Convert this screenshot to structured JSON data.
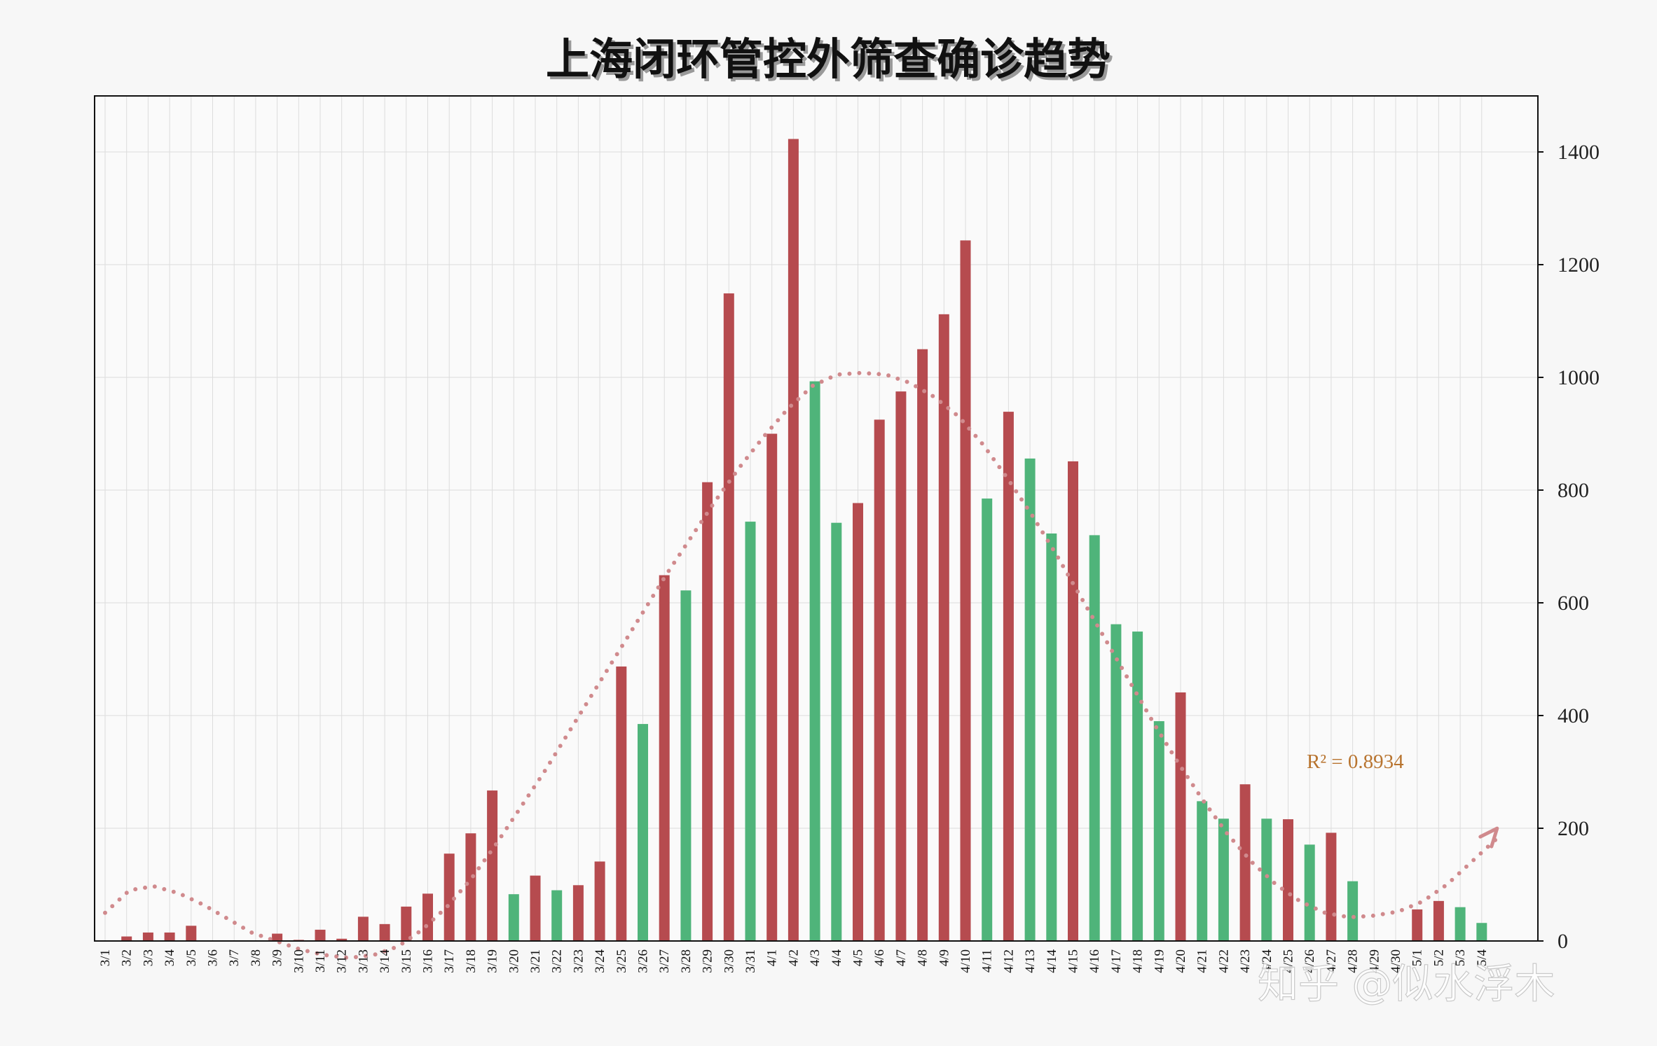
{
  "colors": {
    "up": "#b64b4f",
    "down": "#4fb47a",
    "trend": "#d08a8d",
    "r2_text": "#b8742f"
  },
  "chart_data": {
    "type": "bar",
    "title": "上海闭环管控外筛查确诊趋势",
    "xlabel": "",
    "ylabel": "",
    "y_axis_side": "right",
    "ylim": [
      0,
      1400
    ],
    "yticks": [
      0,
      200,
      400,
      600,
      800,
      1000,
      1200,
      1400
    ],
    "grid": true,
    "legend": "none",
    "categories": [
      "3/1",
      "3/2",
      "3/3",
      "3/4",
      "3/5",
      "3/6",
      "3/7",
      "3/8",
      "3/9",
      "3/10",
      "3/11",
      "3/12",
      "3/13",
      "3/14",
      "3/15",
      "3/16",
      "3/17",
      "3/18",
      "3/19",
      "3/20",
      "3/21",
      "3/22",
      "3/23",
      "3/24",
      "3/25",
      "3/26",
      "3/27",
      "3/28",
      "3/29",
      "3/30",
      "3/31",
      "4/1",
      "4/2",
      "4/3",
      "4/4",
      "4/5",
      "4/6",
      "4/7",
      "4/8",
      "4/9",
      "4/10",
      "4/11",
      "4/12",
      "4/13",
      "4/14",
      "4/15",
      "4/16",
      "4/17",
      "4/18",
      "4/19",
      "4/20",
      "4/21",
      "4/22",
      "4/23",
      "4/24",
      "4/25",
      "4/26",
      "4/27",
      "4/28",
      "4/29",
      "4/30",
      "5/1",
      "5/2",
      "5/3",
      "5/4"
    ],
    "values": [
      1,
      8,
      15,
      15,
      27,
      0,
      0,
      0,
      13,
      2,
      20,
      4,
      43,
      30,
      61,
      84,
      155,
      191,
      267,
      83,
      116,
      90,
      99,
      141,
      487,
      385,
      649,
      622,
      814,
      1149,
      744,
      900,
      1423,
      993,
      742,
      777,
      925,
      975,
      1050,
      1112,
      1243,
      785,
      939,
      856,
      723,
      851,
      720,
      562,
      549,
      390,
      441,
      248,
      217,
      278,
      217,
      216,
      171,
      192,
      106,
      0,
      0,
      56,
      71,
      60,
      32
    ],
    "direction": [
      "up",
      "up",
      "up",
      "up",
      "up",
      "up",
      "up",
      "up",
      "up",
      "up",
      "up",
      "up",
      "up",
      "up",
      "up",
      "up",
      "up",
      "up",
      "up",
      "down",
      "up",
      "down",
      "up",
      "up",
      "up",
      "down",
      "up",
      "down",
      "up",
      "up",
      "down",
      "up",
      "up",
      "down",
      "down",
      "up",
      "up",
      "up",
      "up",
      "up",
      "up",
      "down",
      "up",
      "down",
      "down",
      "up",
      "down",
      "down",
      "down",
      "down",
      "up",
      "down",
      "down",
      "up",
      "down",
      "up",
      "down",
      "up",
      "down",
      "down",
      "down",
      "up",
      "up",
      "down",
      "down"
    ],
    "trendline": {
      "type": "polynomial",
      "style": "dotted",
      "r2_label": "R² = 0.8934"
    }
  },
  "watermark": "知乎 @似水浮木"
}
